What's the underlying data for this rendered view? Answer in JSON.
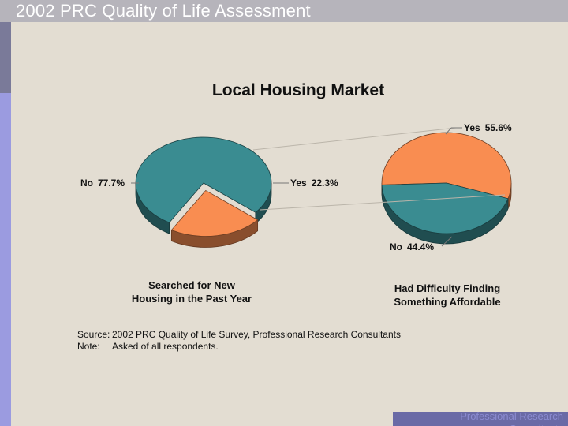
{
  "header": {
    "title": "2002 PRC Quality of Life Assessment"
  },
  "chart_data": [
    {
      "type": "pie",
      "title": "Local Housing Market",
      "caption": [
        "Searched for New",
        "Housing in the Past Year"
      ],
      "slices": [
        {
          "label": "No",
          "value": 77.7,
          "value_text": "77.7%",
          "color": "#3a8c91"
        },
        {
          "label": "Yes",
          "value": 22.3,
          "value_text": "22.3%",
          "color": "#f98d51",
          "exploded": true
        }
      ]
    },
    {
      "type": "pie",
      "caption": [
        "Had Difficulty Finding",
        "Something Affordable"
      ],
      "slices": [
        {
          "label": "Yes",
          "value": 55.6,
          "value_text": "55.6%",
          "color": "#f98d51"
        },
        {
          "label": "No",
          "value": 44.4,
          "value_text": "44.4%",
          "color": "#3a8c91"
        }
      ]
    }
  ],
  "source": {
    "source_label": "Source:",
    "source_text": "2002 PRC Quality of Life Survey, Professional Research Consultants",
    "note_label": "Note:",
    "note_text": "Asked of all respondents."
  },
  "footer": {
    "logo_text": "Professional Research Consultants"
  },
  "colors": {
    "background": "#e3ddd2",
    "teal": "#3a8c91",
    "orange": "#f98d51",
    "stripe": "#9b9be0"
  }
}
